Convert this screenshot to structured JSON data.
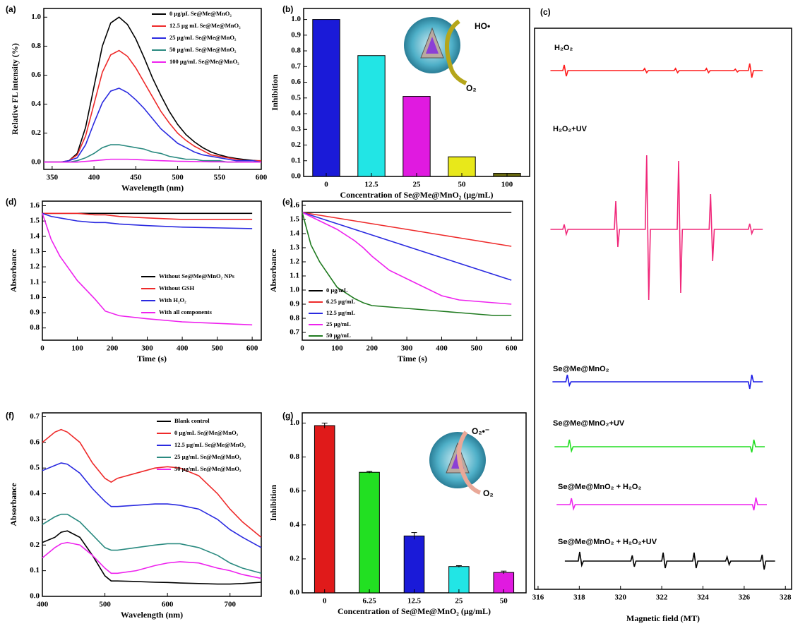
{
  "chart_data": [
    {
      "type": "line",
      "label": "(a)",
      "xlabel": "Wavelength (nm)",
      "ylabel": "Relative FL intensity (%)",
      "x": [
        340,
        350,
        360,
        370,
        380,
        390,
        400,
        410,
        420,
        430,
        440,
        450,
        460,
        470,
        480,
        490,
        500,
        510,
        520,
        530,
        540,
        550,
        560,
        570,
        580,
        590,
        600
      ],
      "xlim": [
        340,
        600
      ],
      "xticks": [
        350,
        400,
        450,
        500,
        550,
        600
      ],
      "ylim": [
        -0.05,
        1.06
      ],
      "yticks": [
        {
          "value": 0,
          "label": "0.0"
        },
        0.2,
        0.4,
        0.6,
        0.8,
        {
          "value": 1,
          "label": "1.0"
        }
      ],
      "series": [
        {
          "name": "0 μg/μL Se@Me@MnO₂",
          "color": "#000000",
          "values": [
            0,
            0,
            0,
            0.01,
            0.06,
            0.24,
            0.52,
            0.8,
            0.96,
            1.0,
            0.95,
            0.85,
            0.72,
            0.58,
            0.46,
            0.35,
            0.26,
            0.19,
            0.14,
            0.1,
            0.07,
            0.05,
            0.035,
            0.025,
            0.018,
            0.012,
            0.008
          ]
        },
        {
          "name": "12.5 μg mL Se@Me@MnO₂",
          "color": "#ee2a2a",
          "values": [
            0,
            0,
            0,
            0.01,
            0.05,
            0.18,
            0.4,
            0.62,
            0.74,
            0.77,
            0.73,
            0.65,
            0.55,
            0.45,
            0.35,
            0.27,
            0.2,
            0.15,
            0.11,
            0.08,
            0.05,
            0.04,
            0.03,
            0.02,
            0.01,
            0.01,
            0.01
          ]
        },
        {
          "name": "25 μg/mL Se@Me@MnO₂",
          "color": "#2a2ae0",
          "values": [
            0,
            0,
            0,
            0.01,
            0.03,
            0.12,
            0.27,
            0.41,
            0.49,
            0.51,
            0.48,
            0.43,
            0.37,
            0.3,
            0.23,
            0.18,
            0.13,
            0.1,
            0.07,
            0.05,
            0.04,
            0.03,
            0.02,
            0.01,
            0.01,
            0.01,
            0
          ]
        },
        {
          "name": "50 μg/mL Se@Me@MnO₂",
          "color": "#2a8a80",
          "values": [
            0,
            0,
            0,
            0,
            0.01,
            0.03,
            0.06,
            0.1,
            0.12,
            0.12,
            0.11,
            0.1,
            0.09,
            0.07,
            0.06,
            0.04,
            0.03,
            0.02,
            0.02,
            0.01,
            0.01,
            0.01,
            0,
            0,
            0,
            0,
            0
          ]
        },
        {
          "name": "100 μg/mL Se@Me@MnO₂",
          "color": "#ee22ee",
          "values": [
            0,
            0,
            0,
            0,
            0,
            0.005,
            0.01,
            0.015,
            0.02,
            0.02,
            0.02,
            0.018,
            0.015,
            0.012,
            0.01,
            0.008,
            0.006,
            0.005,
            0.004,
            0.003,
            0.002,
            0.002,
            0.001,
            0.001,
            0,
            0,
            0
          ]
        }
      ]
    },
    {
      "type": "bar",
      "label": "(b)",
      "xlabel": "Concentration of Se@Me@MnO₂ (μg/mL)",
      "ylabel": "Inhibition",
      "categories": [
        "0",
        "12.5",
        "25",
        "50",
        "100"
      ],
      "values": [
        1.0,
        0.77,
        0.51,
        0.125,
        0.02
      ],
      "colors": [
        "#1a1ad8",
        "#22e5e5",
        "#e01ae0",
        "#e8e81a",
        "#6a6a10"
      ],
      "ylim": [
        0,
        1.07
      ],
      "yticks": [
        {
          "value": 0,
          "label": "0.0"
        },
        0.1,
        0.2,
        0.3,
        0.4,
        0.5,
        0.6,
        0.7,
        0.8,
        0.9,
        {
          "value": 1,
          "label": "1.0"
        }
      ],
      "annotations": [
        {
          "text": "HO•",
          "color": "#1aa8e0"
        },
        {
          "text": "O₂",
          "color": "#2db34a"
        }
      ]
    },
    {
      "type": "line",
      "label": "(c)",
      "xlabel": "Magnetic field (MT)",
      "xlim": [
        315.83,
        328.3
      ],
      "xticks": [
        316,
        318,
        320,
        322,
        324,
        326,
        328
      ],
      "series": [
        {
          "name": "H₂O₂",
          "color": "#ff1a1a",
          "x": [
            316.6,
            317.2,
            317.27,
            317.37,
            317.45,
            321.1,
            321.17,
            321.27,
            321.35,
            322.6,
            322.67,
            322.77,
            322.85,
            324.1,
            324.17,
            324.27,
            324.35,
            325.5,
            325.57,
            325.67,
            325.75,
            326.2,
            326.27,
            326.37,
            326.45,
            326.9
          ],
          "values": [
            0,
            0,
            0.8,
            -0.8,
            0,
            0,
            0.3,
            -0.3,
            0,
            0,
            0.3,
            -0.3,
            0,
            0,
            0.3,
            -0.3,
            0,
            0,
            0.2,
            -0.2,
            0,
            0,
            1,
            -1,
            0,
            0
          ]
        },
        {
          "name": "H₂O₂+UV",
          "color": "#f0287a",
          "x": [
            316.6,
            317.2,
            317.27,
            317.37,
            317.45,
            319.7,
            319.77,
            319.87,
            319.95,
            321.2,
            321.27,
            321.37,
            321.45,
            322.75,
            322.82,
            322.92,
            323.0,
            324.3,
            324.37,
            324.47,
            324.55,
            326.2,
            326.27,
            326.37,
            326.45,
            326.9
          ],
          "values": [
            0,
            0,
            0.7,
            -0.7,
            0,
            0,
            4,
            -2.5,
            0,
            0,
            10.5,
            -10,
            0,
            0,
            9.7,
            -9,
            0,
            0,
            5,
            -4.5,
            0,
            0,
            0.8,
            -0.6,
            0,
            0
          ]
        },
        {
          "name": "Se@Me@MnO₂",
          "color": "#1a1ae6",
          "x": [
            316.7,
            317.35,
            317.42,
            317.52,
            317.6,
            326.2,
            326.27,
            326.37,
            326.45,
            326.9
          ],
          "values": [
            0,
            0,
            1,
            -0.5,
            0,
            0,
            -1,
            1,
            0,
            0
          ]
        },
        {
          "name": "Se@Me@MnO₂+UV",
          "color": "#22dd22",
          "x": [
            316.8,
            317.45,
            317.52,
            317.62,
            317.7,
            326.3,
            326.37,
            326.47,
            326.55,
            327.0
          ],
          "values": [
            0,
            0,
            1,
            -0.6,
            0,
            0,
            -0.8,
            1,
            0,
            0
          ]
        },
        {
          "name": "Se@Me@MnO₂ + H₂O₂",
          "color": "#ee22ee",
          "x": [
            316.9,
            317.55,
            317.62,
            317.72,
            317.8,
            326.4,
            326.47,
            326.57,
            326.65,
            327.1
          ],
          "values": [
            0,
            0,
            0.9,
            -0.6,
            0,
            0,
            -0.8,
            1,
            0,
            0
          ]
        },
        {
          "name": "Se@Me@MnO₂ + H₂O₂+UV",
          "color": "#000000",
          "x": [
            317.3,
            317.95,
            318.02,
            318.12,
            318.2,
            320.5,
            320.57,
            320.67,
            320.75,
            322.0,
            322.07,
            322.17,
            322.25,
            323.5,
            323.57,
            323.67,
            323.75,
            325.1,
            325.17,
            325.27,
            325.35,
            326.8,
            326.87,
            326.97,
            327.05,
            327.5
          ],
          "values": [
            0,
            0,
            1.3,
            -0.6,
            0,
            0,
            0.8,
            -0.8,
            0,
            0,
            1.2,
            -1.0,
            0,
            0,
            1.2,
            -1.0,
            0,
            0,
            0.6,
            -0.5,
            0,
            0,
            0.9,
            -1.2,
            0,
            0
          ]
        }
      ]
    },
    {
      "type": "line",
      "label": "(d)",
      "xlabel": "Time (s)",
      "ylabel": "Absorbance",
      "x": [
        0,
        25,
        50,
        100,
        150,
        180,
        220,
        300,
        400,
        500,
        600
      ],
      "xlim": [
        0,
        626
      ],
      "xticks": [
        0,
        100,
        200,
        300,
        400,
        500,
        600
      ],
      "ylim": [
        0.72,
        1.63
      ],
      "yticks": [
        0.8,
        0.9,
        {
          "value": 1,
          "label": "1.0"
        },
        1.1,
        1.2,
        1.3,
        1.4,
        1.5,
        1.6
      ],
      "series": [
        {
          "name": "Without Se@Me@MnO₂ NPs",
          "color": "#000000",
          "values": [
            1.55,
            1.55,
            1.55,
            1.55,
            1.55,
            1.55,
            1.55,
            1.55,
            1.55,
            1.55,
            1.55
          ]
        },
        {
          "name": "Without GSH",
          "color": "#ee2a2a",
          "values": [
            1.55,
            1.55,
            1.55,
            1.55,
            1.54,
            1.54,
            1.53,
            1.52,
            1.51,
            1.51,
            1.51
          ]
        },
        {
          "name": "With H₂O₂",
          "color": "#2a2ae0",
          "values": [
            1.55,
            1.53,
            1.52,
            1.5,
            1.49,
            1.49,
            1.48,
            1.47,
            1.46,
            1.455,
            1.45
          ]
        },
        {
          "name": "With all components",
          "color": "#ee22ee",
          "values": [
            1.55,
            1.38,
            1.27,
            1.11,
            0.99,
            0.91,
            0.88,
            0.86,
            0.84,
            0.83,
            0.82
          ]
        }
      ]
    },
    {
      "type": "line",
      "label": "(e)",
      "xlabel": "Time (s)",
      "ylabel": "Absorbance",
      "x": [
        0,
        25,
        50,
        100,
        150,
        175,
        200,
        250,
        300,
        350,
        400,
        450,
        500,
        550,
        600
      ],
      "xlim": [
        0,
        632
      ],
      "xticks": [
        0,
        100,
        200,
        300,
        400,
        500,
        600
      ],
      "ylim": [
        0.645,
        1.63
      ],
      "yticks": [
        0.7,
        0.8,
        0.9,
        {
          "value": 1,
          "label": "1.0"
        },
        1.1,
        1.2,
        1.3,
        1.4,
        1.5,
        1.6
      ],
      "series": [
        {
          "name": "0 μg/mL",
          "color": "#000000",
          "values": [
            1.55,
            1.55,
            1.55,
            1.55,
            1.55,
            1.55,
            1.55,
            1.55,
            1.55,
            1.55,
            1.55,
            1.55,
            1.55,
            1.55,
            1.55
          ]
        },
        {
          "name": "6.25 μg/mL",
          "color": "#ee2a2a",
          "values": [
            1.55,
            1.54,
            1.53,
            1.51,
            1.49,
            1.48,
            1.47,
            1.45,
            1.43,
            1.41,
            1.39,
            1.37,
            1.35,
            1.33,
            1.31
          ]
        },
        {
          "name": "12.5 μg/mL",
          "color": "#2a2ae0",
          "values": [
            1.55,
            1.53,
            1.51,
            1.47,
            1.43,
            1.41,
            1.39,
            1.35,
            1.31,
            1.27,
            1.23,
            1.19,
            1.15,
            1.11,
            1.07
          ]
        },
        {
          "name": "25 μg/mL",
          "color": "#ee22ee",
          "values": [
            1.55,
            1.52,
            1.49,
            1.43,
            1.35,
            1.3,
            1.24,
            1.14,
            1.08,
            1.02,
            0.96,
            0.93,
            0.92,
            0.91,
            0.9
          ]
        },
        {
          "name": "50 μg/mL",
          "color": "#1f7a1f",
          "values": [
            1.55,
            1.32,
            1.2,
            1.02,
            0.94,
            0.91,
            0.89,
            0.88,
            0.87,
            0.86,
            0.85,
            0.84,
            0.83,
            0.82,
            0.82
          ]
        }
      ]
    },
    {
      "type": "line",
      "label": "(f)",
      "xlabel": "Wavelength (nm)",
      "ylabel": "Absorbance",
      "x": [
        400,
        420,
        430,
        440,
        460,
        480,
        500,
        510,
        520,
        550,
        580,
        600,
        620,
        650,
        680,
        700,
        720,
        750
      ],
      "xlim": [
        400,
        750
      ],
      "xticks": [
        400,
        500,
        600,
        700
      ],
      "ylim": [
        0,
        0.715
      ],
      "yticks": [
        {
          "value": 0,
          "label": "0.0"
        },
        0.1,
        0.2,
        0.3,
        0.4,
        0.5,
        0.6,
        0.7
      ],
      "series": [
        {
          "name": "Blank control",
          "color": "#000000",
          "values": [
            0.21,
            0.23,
            0.25,
            0.255,
            0.23,
            0.16,
            0.08,
            0.06,
            0.06,
            0.058,
            0.055,
            0.054,
            0.052,
            0.05,
            0.048,
            0.048,
            0.05,
            0.055
          ]
        },
        {
          "name": "0 μg/mL Se@Me@MnO₂",
          "color": "#ee2a2a",
          "values": [
            0.6,
            0.64,
            0.65,
            0.64,
            0.6,
            0.52,
            0.46,
            0.445,
            0.46,
            0.48,
            0.5,
            0.505,
            0.5,
            0.47,
            0.4,
            0.34,
            0.29,
            0.23
          ]
        },
        {
          "name": "12.5 μg/mL Se@Me@MnO₂",
          "color": "#2a2ae0",
          "values": [
            0.49,
            0.51,
            0.52,
            0.515,
            0.48,
            0.42,
            0.37,
            0.35,
            0.35,
            0.355,
            0.36,
            0.36,
            0.355,
            0.34,
            0.3,
            0.26,
            0.23,
            0.19
          ]
        },
        {
          "name": "25 μg/mL Se@Me@MnO₂",
          "color": "#2a8a80",
          "values": [
            0.28,
            0.31,
            0.32,
            0.32,
            0.29,
            0.24,
            0.19,
            0.18,
            0.18,
            0.19,
            0.2,
            0.205,
            0.205,
            0.19,
            0.16,
            0.13,
            0.11,
            0.09
          ]
        },
        {
          "name": "50 μg/mL Se@Me@MnO₂",
          "color": "#ee22ee",
          "values": [
            0.15,
            0.19,
            0.205,
            0.21,
            0.2,
            0.16,
            0.11,
            0.09,
            0.09,
            0.1,
            0.12,
            0.13,
            0.135,
            0.13,
            0.11,
            0.1,
            0.085,
            0.07
          ]
        }
      ]
    },
    {
      "type": "bar",
      "label": "(g)",
      "xlabel": "Concentration of Se@Me@MnO₂ (μg/mL)",
      "ylabel": "Inhibition",
      "categories": [
        "0",
        "6.25",
        "12.5",
        "25",
        "50"
      ],
      "values": [
        0.985,
        0.71,
        0.335,
        0.155,
        0.12
      ],
      "errors": [
        0.015,
        0.005,
        0.02,
        0.005,
        0.008
      ],
      "colors": [
        "#e01a1a",
        "#22e022",
        "#1a1ad8",
        "#22e5e5",
        "#e01ae0"
      ],
      "ylim": [
        0,
        1.06
      ],
      "yticks": [
        {
          "value": 0,
          "label": "0.0"
        },
        0.2,
        0.4,
        0.6,
        0.8,
        {
          "value": 1,
          "label": "1.0"
        }
      ],
      "annotations": [
        {
          "text": "O₂•⁻",
          "color": "#8b2fa0"
        },
        {
          "text": "O₂",
          "color": "#2db34a"
        }
      ]
    }
  ]
}
